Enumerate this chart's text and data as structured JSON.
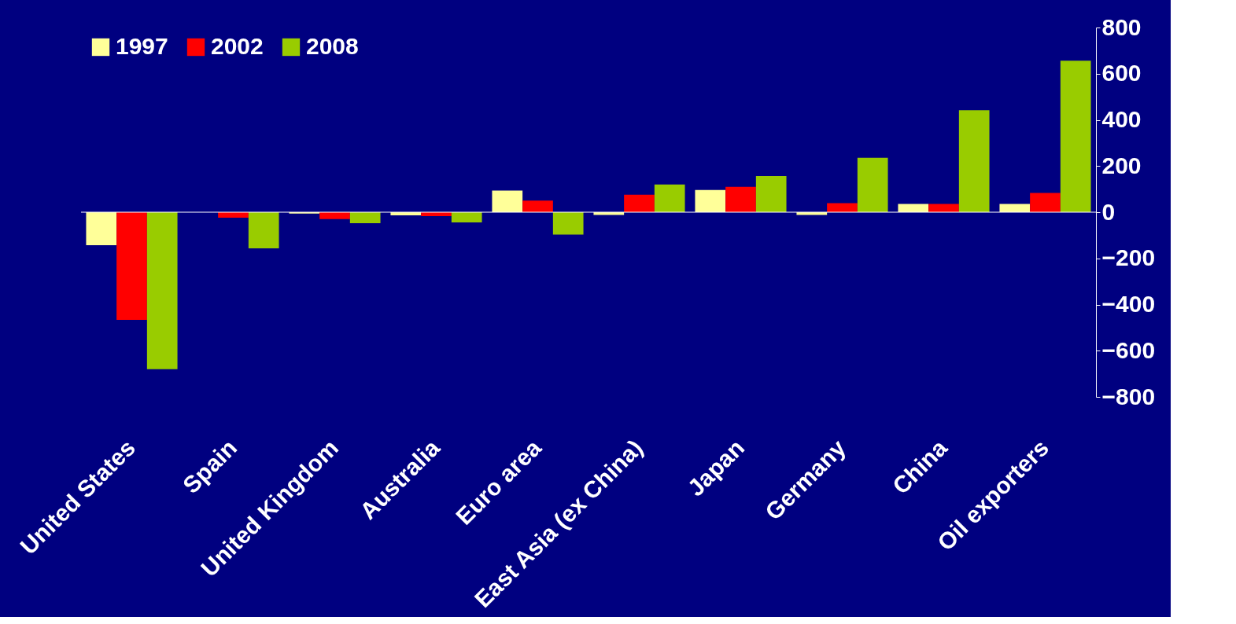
{
  "chart_data": {
    "type": "bar",
    "categories": [
      "United States",
      "Spain",
      "United Kingdom",
      "Australia",
      "Euro area",
      "East Asia (ex China)",
      "Japan",
      "Germany",
      "China",
      "Oil exporters"
    ],
    "series": [
      {
        "name": "1997",
        "color": "#ffff99",
        "values": [
          -143,
          0,
          -6,
          -14,
          94,
          -12,
          96,
          -12,
          36,
          36
        ]
      },
      {
        "name": "2002",
        "color": "#ff0000",
        "values": [
          -466,
          -24,
          -30,
          -17,
          50,
          76,
          110,
          39,
          36,
          83
        ]
      },
      {
        "name": "2008",
        "color": "#99cc00",
        "values": [
          -680,
          -157,
          -48,
          -44,
          -97,
          120,
          157,
          236,
          442,
          656
        ]
      }
    ],
    "ylim": [
      -800,
      800
    ],
    "yticks": [
      -800,
      -600,
      -400,
      -200,
      0,
      200,
      400,
      600,
      800
    ],
    "ref_lines": [
      {
        "axis": "y",
        "value": 0,
        "color": "#ffffff"
      }
    ],
    "grid": false,
    "legend": "top left"
  }
}
